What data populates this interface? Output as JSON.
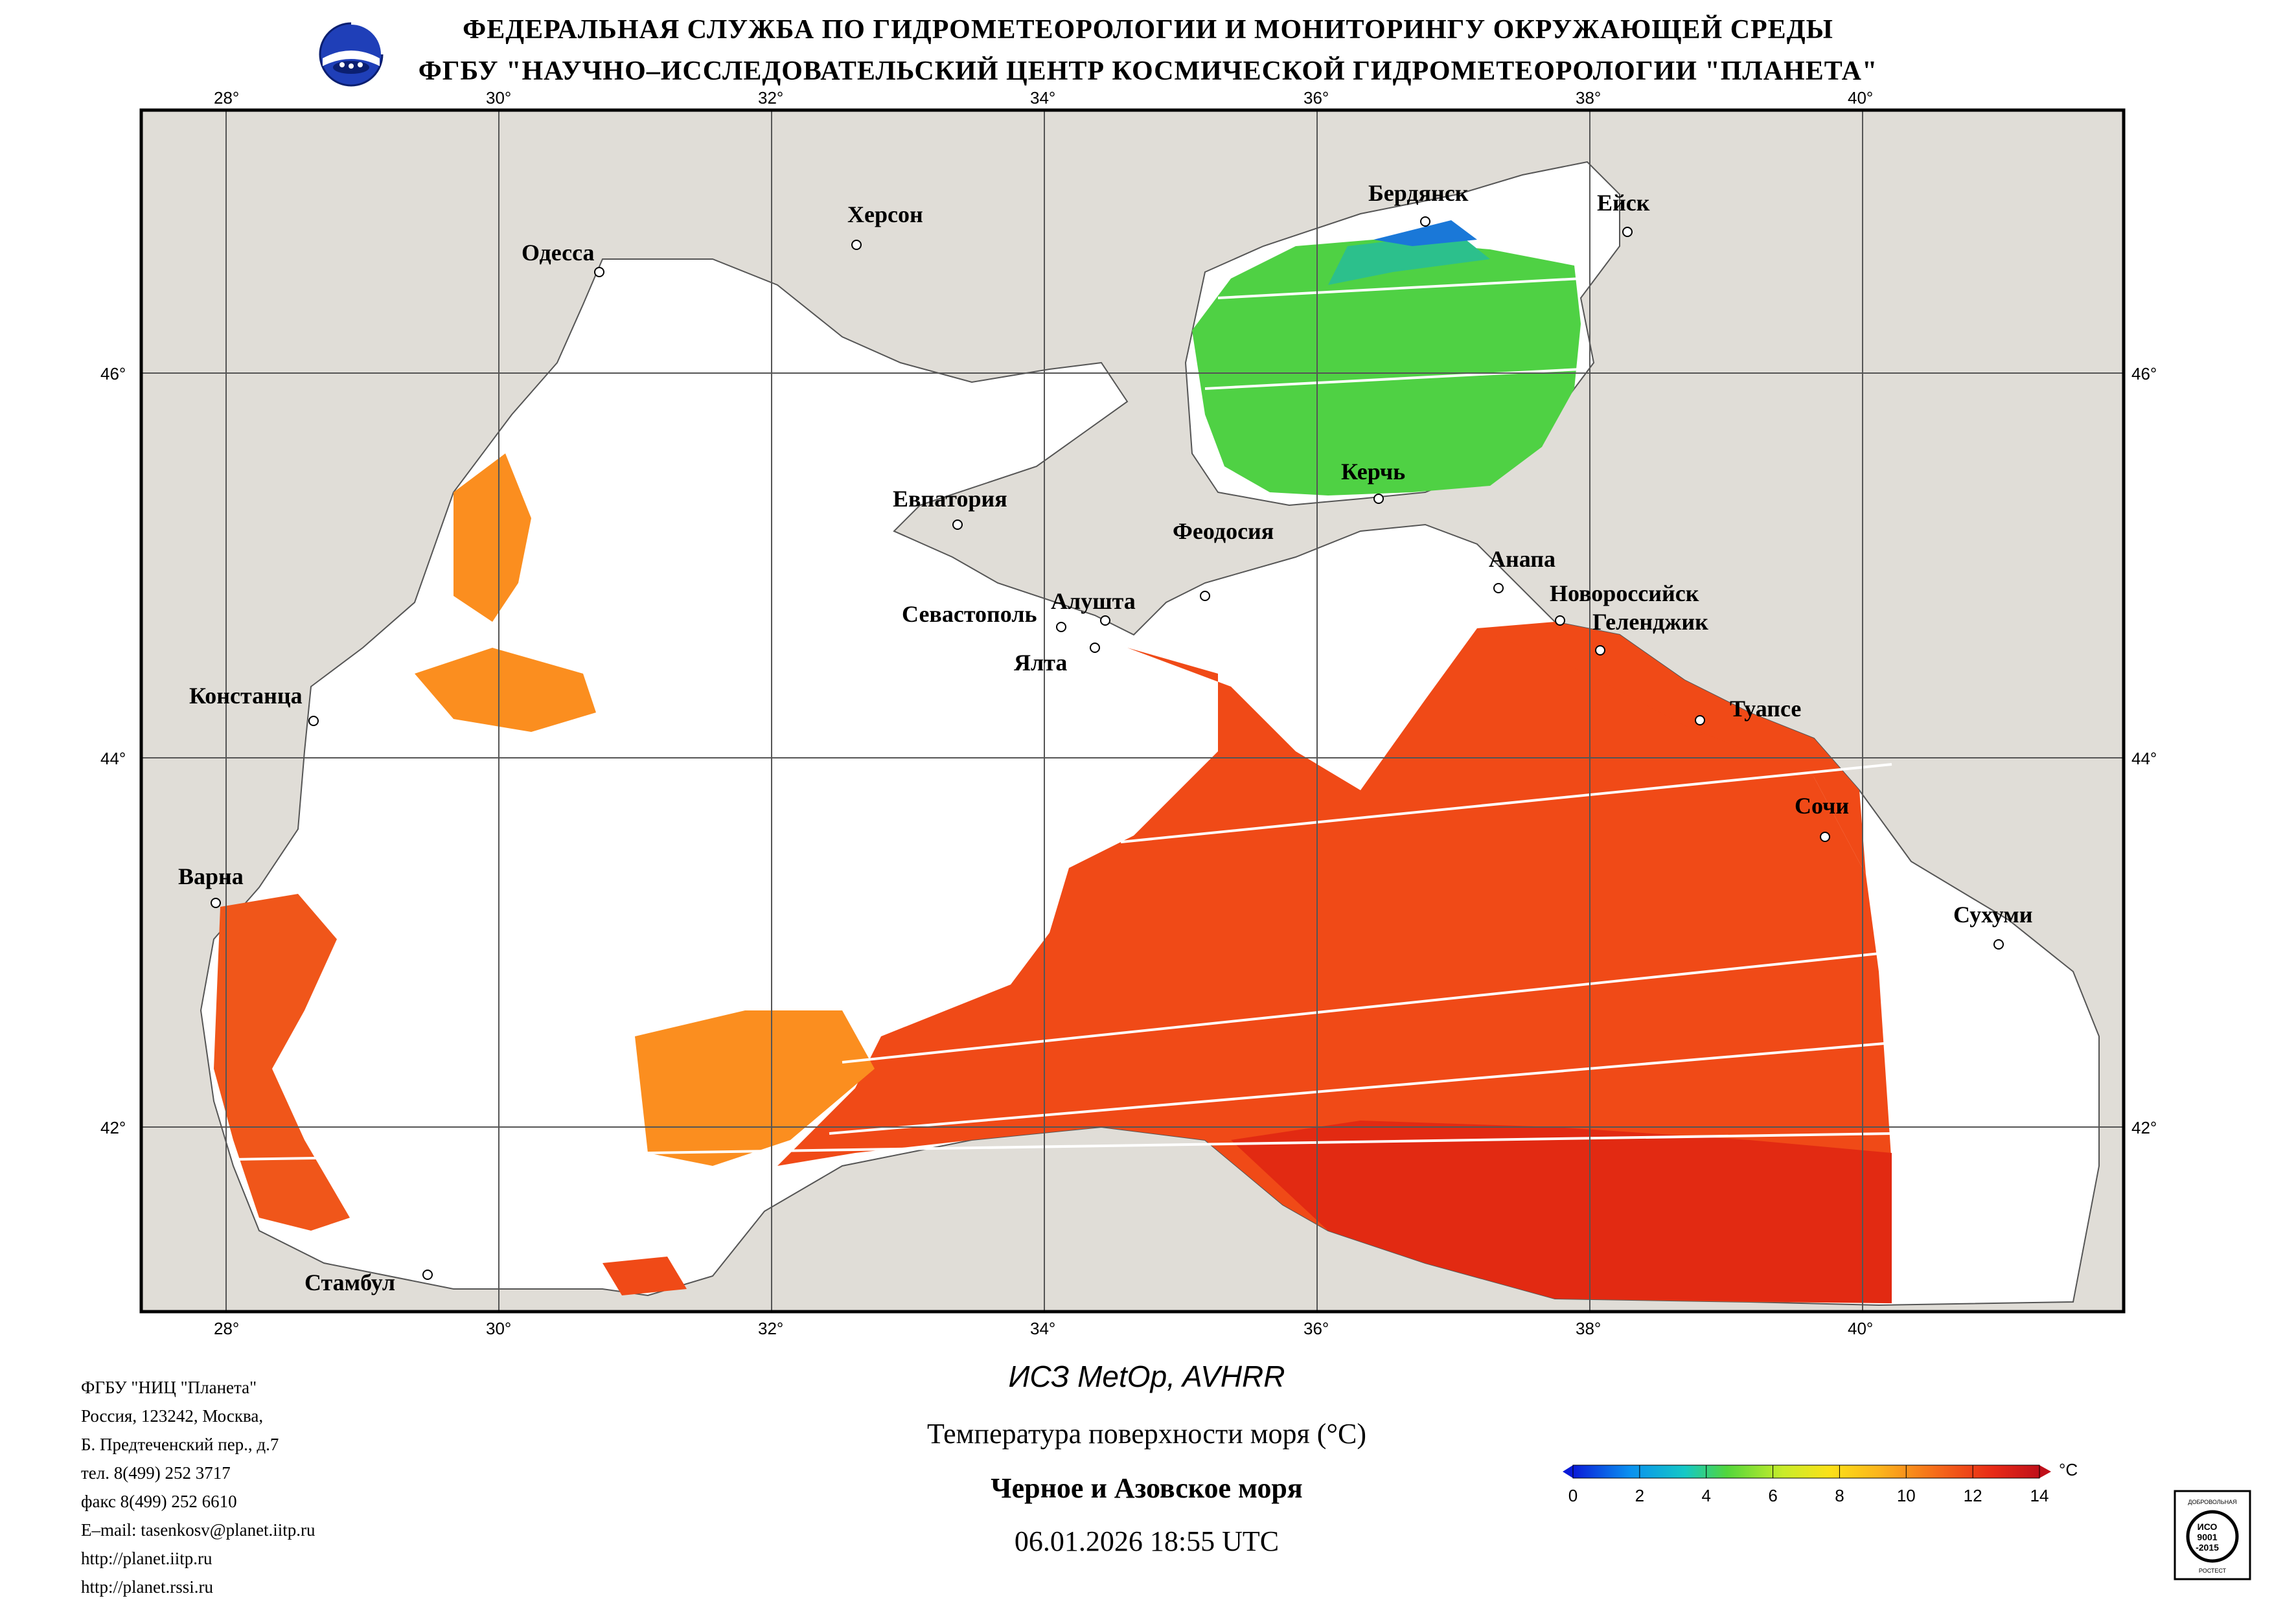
{
  "header": {
    "line1": "ФЕДЕРАЛЬНАЯ СЛУЖБА ПО ГИДРОМЕТЕОРОЛОГИИ И МОНИТОРИНГУ ОКРУЖАЮЩЕЙ СРЕДЫ",
    "line2": "ФГБУ \"НАУЧНО–ИССЛЕДОВАТЕЛЬСКИЙ ЦЕНТР КОСМИЧЕСКОЙ ГИДРОМЕТЕОРОЛОГИИ \"ПЛАНЕТА\""
  },
  "map": {
    "lon_labels": [
      "28°",
      "30°",
      "32°",
      "34°",
      "36°",
      "38°",
      "40°"
    ],
    "lat_labels": [
      "46°",
      "44°",
      "42°"
    ],
    "cities": [
      {
        "name": "Одесса"
      },
      {
        "name": "Херсон"
      },
      {
        "name": "Бердянск"
      },
      {
        "name": "Ейск"
      },
      {
        "name": "Евпатория"
      },
      {
        "name": "Керчь"
      },
      {
        "name": "Феодосия"
      },
      {
        "name": "Анапа"
      },
      {
        "name": "Новороссийск"
      },
      {
        "name": "Геленджик"
      },
      {
        "name": "Севастополь"
      },
      {
        "name": "Алушта"
      },
      {
        "name": "Ялта"
      },
      {
        "name": "Констанца"
      },
      {
        "name": "Туапсе"
      },
      {
        "name": "Сочи"
      },
      {
        "name": "Варна"
      },
      {
        "name": "Сухуми"
      },
      {
        "name": "Стамбул"
      }
    ],
    "colors": {
      "land": "#e0ddd7",
      "cloud": "#ffffff",
      "grid": "#555555",
      "warm": "#f04a17",
      "hot": "#e22a12",
      "mid": "#fb8e1f",
      "cool": "#52d63c"
    }
  },
  "footer": {
    "org": [
      "ФГБУ \"НИЦ \"Планета\"",
      "Россия, 123242, Москва,",
      "Б. Предтеченский пер., д.7",
      "тел. 8(499) 252 3717",
      "факс 8(499) 252 6610",
      "E–mail: tasenkosv@planet.iitp.ru",
      "http://planet.iitp.ru",
      "http://planet.rssi.ru"
    ],
    "satellite": "ИСЗ MetOp, AVHRR",
    "product": "Температура поверхности моря (°С)",
    "region": "Черное и Азовское моря",
    "datetime": "06.01.2026 18:55 UTC"
  },
  "colorbar": {
    "ticks": [
      "0",
      "2",
      "4",
      "6",
      "8",
      "10",
      "12",
      "14"
    ],
    "unit": "°C",
    "min": 0,
    "max": 14,
    "stops": [
      "#0a1bd8",
      "#0a8ff0",
      "#15c8c6",
      "#52d63c",
      "#c8ec2a",
      "#fbe118",
      "#fbb31c",
      "#f56a1a",
      "#e82a16",
      "#c0101a"
    ]
  },
  "iso_badge": {
    "top": "ДОБРОВОЛЬНАЯ",
    "mid1": "ИСО",
    "mid2": "9001",
    "mid3": "-2015",
    "bottom": "РОСТЕСТ"
  }
}
